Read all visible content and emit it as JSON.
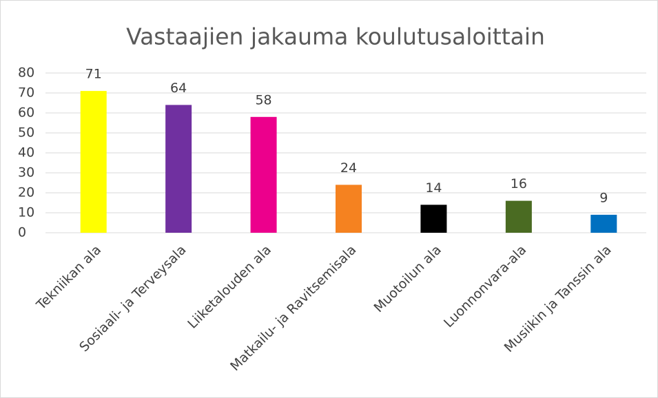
{
  "chart_data": {
    "type": "bar",
    "title": "Vastaajien jakauma koulutusaloittain",
    "categories": [
      "Tekniikan ala",
      "Sosiaali- ja Terveysala",
      "Liiketalouden ala",
      "Matkailu- ja Ravitsemisala",
      "Muotoilun ala",
      "Luonnonvara-ala",
      "Musiikin ja Tanssin ala"
    ],
    "values": [
      71,
      64,
      58,
      24,
      14,
      16,
      9
    ],
    "colors": [
      "#ffff00",
      "#7030a0",
      "#ec008c",
      "#f58220",
      "#000000",
      "#4a6b22",
      "#0070c0"
    ],
    "ylim": [
      0,
      80
    ],
    "yticks": [
      0,
      10,
      20,
      30,
      40,
      50,
      60,
      70,
      80
    ],
    "grid": true
  }
}
